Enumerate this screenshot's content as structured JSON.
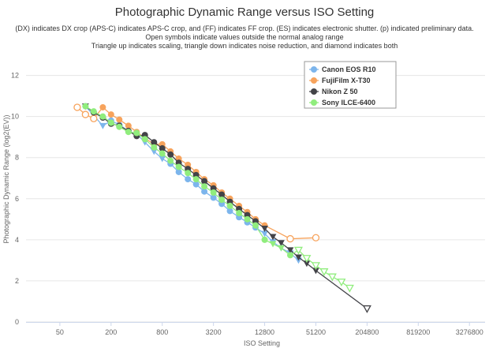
{
  "chart_data": {
    "type": "line",
    "title": "Photographic Dynamic Range versus ISO Setting",
    "subtitle_lines": [
      "(DX) indicates DX crop (APS-C) indicates APS-C crop, and (FF) indicates FF crop. (ES) indicates electronic shutter. (p) indicated preliminary data.",
      "Open symbols indicate values outside the normal analog range",
      "Triangle up indicates scaling, triangle down indicates noise reduction, and diamond indicates both"
    ],
    "xlabel": "ISO Setting",
    "ylabel": "Photographic Dynamic Range (log2(EV))",
    "x_scale": "log2",
    "x_ticks": [
      50,
      200,
      800,
      3200,
      12800,
      51200,
      204800,
      819200,
      3276800
    ],
    "y_ticks": [
      0,
      2,
      4,
      6,
      8,
      10,
      12
    ],
    "ylim": [
      0,
      12.6
    ],
    "grid": "horizontal",
    "legend_position": "top-right",
    "series": [
      {
        "name": "Canon EOS R10",
        "color": "#7cb5ec",
        "points": [
          {
            "x": 100,
            "y": 10.5,
            "m": "circle"
          },
          {
            "x": 160,
            "y": 9.55,
            "m": "triangle-down"
          },
          {
            "x": 200,
            "y": 9.8,
            "m": "circle"
          },
          {
            "x": 250,
            "y": 9.6,
            "m": "circle"
          },
          {
            "x": 320,
            "y": 9.3,
            "m": "circle"
          },
          {
            "x": 400,
            "y": 9.15,
            "m": "circle"
          },
          {
            "x": 500,
            "y": 8.75,
            "m": "triangle-down"
          },
          {
            "x": 640,
            "y": 8.3,
            "m": "triangle-down"
          },
          {
            "x": 800,
            "y": 7.95,
            "m": "triangle-down"
          },
          {
            "x": 1000,
            "y": 7.7,
            "m": "circle"
          },
          {
            "x": 1250,
            "y": 7.3,
            "m": "circle"
          },
          {
            "x": 1600,
            "y": 6.95,
            "m": "circle"
          },
          {
            "x": 2000,
            "y": 6.7,
            "m": "circle"
          },
          {
            "x": 2500,
            "y": 6.35,
            "m": "circle"
          },
          {
            "x": 3200,
            "y": 6.05,
            "m": "circle"
          },
          {
            "x": 4000,
            "y": 5.75,
            "m": "circle"
          },
          {
            "x": 5000,
            "y": 5.4,
            "m": "circle"
          },
          {
            "x": 6400,
            "y": 5.1,
            "m": "circle"
          },
          {
            "x": 8000,
            "y": 4.85,
            "m": "circle"
          },
          {
            "x": 10000,
            "y": 4.6,
            "m": "circle"
          },
          {
            "x": 12800,
            "y": 4.3,
            "m": "triangle-down"
          },
          {
            "x": 16000,
            "y": 3.9,
            "m": "triangle-down"
          },
          {
            "x": 20000,
            "y": 3.6,
            "m": "triangle-down"
          },
          {
            "x": 25600,
            "y": 3.35,
            "m": "triangle-down"
          },
          {
            "x": 32000,
            "y": 3.0,
            "m": "triangle-down"
          }
        ]
      },
      {
        "name": "FujiFilm X-T30",
        "color": "#f7a35c",
        "points": [
          {
            "x": 80,
            "y": 10.45,
            "m": "circle-open"
          },
          {
            "x": 100,
            "y": 10.1,
            "m": "circle-open"
          },
          {
            "x": 125,
            "y": 9.9,
            "m": "circle-open"
          },
          {
            "x": 160,
            "y": 10.45,
            "m": "circle"
          },
          {
            "x": 200,
            "y": 10.1,
            "m": "circle"
          },
          {
            "x": 250,
            "y": 9.85,
            "m": "circle"
          },
          {
            "x": 320,
            "y": 9.55,
            "m": "circle"
          },
          {
            "x": 400,
            "y": 9.25,
            "m": "circle"
          },
          {
            "x": 500,
            "y": 8.95,
            "m": "circle"
          },
          {
            "x": 640,
            "y": 8.65,
            "m": "circle"
          },
          {
            "x": 800,
            "y": 8.65,
            "m": "circle"
          },
          {
            "x": 1000,
            "y": 8.3,
            "m": "circle"
          },
          {
            "x": 1250,
            "y": 7.95,
            "m": "circle"
          },
          {
            "x": 1600,
            "y": 7.65,
            "m": "circle"
          },
          {
            "x": 2000,
            "y": 7.3,
            "m": "circle"
          },
          {
            "x": 2500,
            "y": 6.95,
            "m": "circle"
          },
          {
            "x": 3200,
            "y": 6.65,
            "m": "circle"
          },
          {
            "x": 4000,
            "y": 6.3,
            "m": "circle"
          },
          {
            "x": 5000,
            "y": 6.0,
            "m": "circle"
          },
          {
            "x": 6400,
            "y": 5.65,
            "m": "circle"
          },
          {
            "x": 8000,
            "y": 5.35,
            "m": "circle"
          },
          {
            "x": 10000,
            "y": 5.0,
            "m": "circle"
          },
          {
            "x": 12800,
            "y": 4.7,
            "m": "circle"
          },
          {
            "x": 25600,
            "y": 4.05,
            "m": "circle-open"
          },
          {
            "x": 51200,
            "y": 4.1,
            "m": "circle-open"
          }
        ]
      },
      {
        "name": "Nikon Z 50",
        "color": "#434348",
        "points": [
          {
            "x": 100,
            "y": 10.5,
            "m": "triangle-down"
          },
          {
            "x": 125,
            "y": 10.2,
            "m": "circle"
          },
          {
            "x": 160,
            "y": 9.95,
            "m": "circle"
          },
          {
            "x": 200,
            "y": 9.65,
            "m": "circle"
          },
          {
            "x": 250,
            "y": 9.55,
            "m": "circle"
          },
          {
            "x": 320,
            "y": 9.3,
            "m": "circle"
          },
          {
            "x": 400,
            "y": 9.05,
            "m": "circle"
          },
          {
            "x": 500,
            "y": 9.1,
            "m": "circle"
          },
          {
            "x": 640,
            "y": 8.75,
            "m": "circle"
          },
          {
            "x": 800,
            "y": 8.45,
            "m": "circle"
          },
          {
            "x": 1000,
            "y": 8.15,
            "m": "circle"
          },
          {
            "x": 1250,
            "y": 7.75,
            "m": "circle"
          },
          {
            "x": 1600,
            "y": 7.45,
            "m": "circle"
          },
          {
            "x": 2000,
            "y": 7.15,
            "m": "circle"
          },
          {
            "x": 2500,
            "y": 6.85,
            "m": "circle"
          },
          {
            "x": 3200,
            "y": 6.5,
            "m": "circle"
          },
          {
            "x": 4000,
            "y": 6.2,
            "m": "circle"
          },
          {
            "x": 5000,
            "y": 5.85,
            "m": "circle"
          },
          {
            "x": 6400,
            "y": 5.5,
            "m": "circle"
          },
          {
            "x": 8000,
            "y": 5.2,
            "m": "circle"
          },
          {
            "x": 10000,
            "y": 4.9,
            "m": "circle"
          },
          {
            "x": 12800,
            "y": 4.55,
            "m": "triangle-down"
          },
          {
            "x": 16000,
            "y": 4.15,
            "m": "triangle-down"
          },
          {
            "x": 20000,
            "y": 3.85,
            "m": "triangle-down"
          },
          {
            "x": 25600,
            "y": 3.5,
            "m": "triangle-down"
          },
          {
            "x": 32000,
            "y": 3.15,
            "m": "triangle-down"
          },
          {
            "x": 40000,
            "y": 2.85,
            "m": "triangle-down"
          },
          {
            "x": 51200,
            "y": 2.5,
            "m": "triangle-down"
          },
          {
            "x": 204800,
            "y": 0.65,
            "m": "triangle-down-open"
          }
        ]
      },
      {
        "name": "Sony ILCE-6400",
        "color": "#90ed7d",
        "points": [
          {
            "x": 100,
            "y": 10.5,
            "m": "circle"
          },
          {
            "x": 125,
            "y": 10.25,
            "m": "circle"
          },
          {
            "x": 160,
            "y": 10.0,
            "m": "circle"
          },
          {
            "x": 200,
            "y": 9.7,
            "m": "circle"
          },
          {
            "x": 250,
            "y": 9.5,
            "m": "circle"
          },
          {
            "x": 320,
            "y": 9.25,
            "m": "circle"
          },
          {
            "x": 400,
            "y": 9.2,
            "m": "circle"
          },
          {
            "x": 500,
            "y": 8.9,
            "m": "circle"
          },
          {
            "x": 640,
            "y": 8.5,
            "m": "circle"
          },
          {
            "x": 800,
            "y": 8.2,
            "m": "circle"
          },
          {
            "x": 1000,
            "y": 7.85,
            "m": "circle"
          },
          {
            "x": 1250,
            "y": 7.55,
            "m": "circle"
          },
          {
            "x": 1600,
            "y": 7.25,
            "m": "circle"
          },
          {
            "x": 2000,
            "y": 6.95,
            "m": "circle"
          },
          {
            "x": 2500,
            "y": 6.6,
            "m": "circle"
          },
          {
            "x": 3200,
            "y": 6.3,
            "m": "circle"
          },
          {
            "x": 4000,
            "y": 5.95,
            "m": "circle"
          },
          {
            "x": 5000,
            "y": 5.65,
            "m": "circle"
          },
          {
            "x": 6400,
            "y": 5.3,
            "m": "circle"
          },
          {
            "x": 8000,
            "y": 5.0,
            "m": "circle"
          },
          {
            "x": 10000,
            "y": 4.7,
            "m": "circle"
          },
          {
            "x": 12800,
            "y": 4.0,
            "m": "circle"
          },
          {
            "x": 16000,
            "y": 3.8,
            "m": "triangle-down"
          },
          {
            "x": 20000,
            "y": 3.6,
            "m": "triangle-down"
          },
          {
            "x": 25600,
            "y": 3.25,
            "m": "circle"
          },
          {
            "x": 32000,
            "y": 3.5,
            "m": "triangle-down-open"
          },
          {
            "x": 40000,
            "y": 3.1,
            "m": "triangle-down-open"
          },
          {
            "x": 51200,
            "y": 2.75,
            "m": "triangle-down-open"
          },
          {
            "x": 64000,
            "y": 2.45,
            "m": "triangle-down-open"
          },
          {
            "x": 80000,
            "y": 2.2,
            "m": "triangle-down-open"
          },
          {
            "x": 102400,
            "y": 1.95,
            "m": "triangle-down-open"
          },
          {
            "x": 128000,
            "y": 1.65,
            "m": "triangle-down-open"
          }
        ]
      }
    ]
  }
}
